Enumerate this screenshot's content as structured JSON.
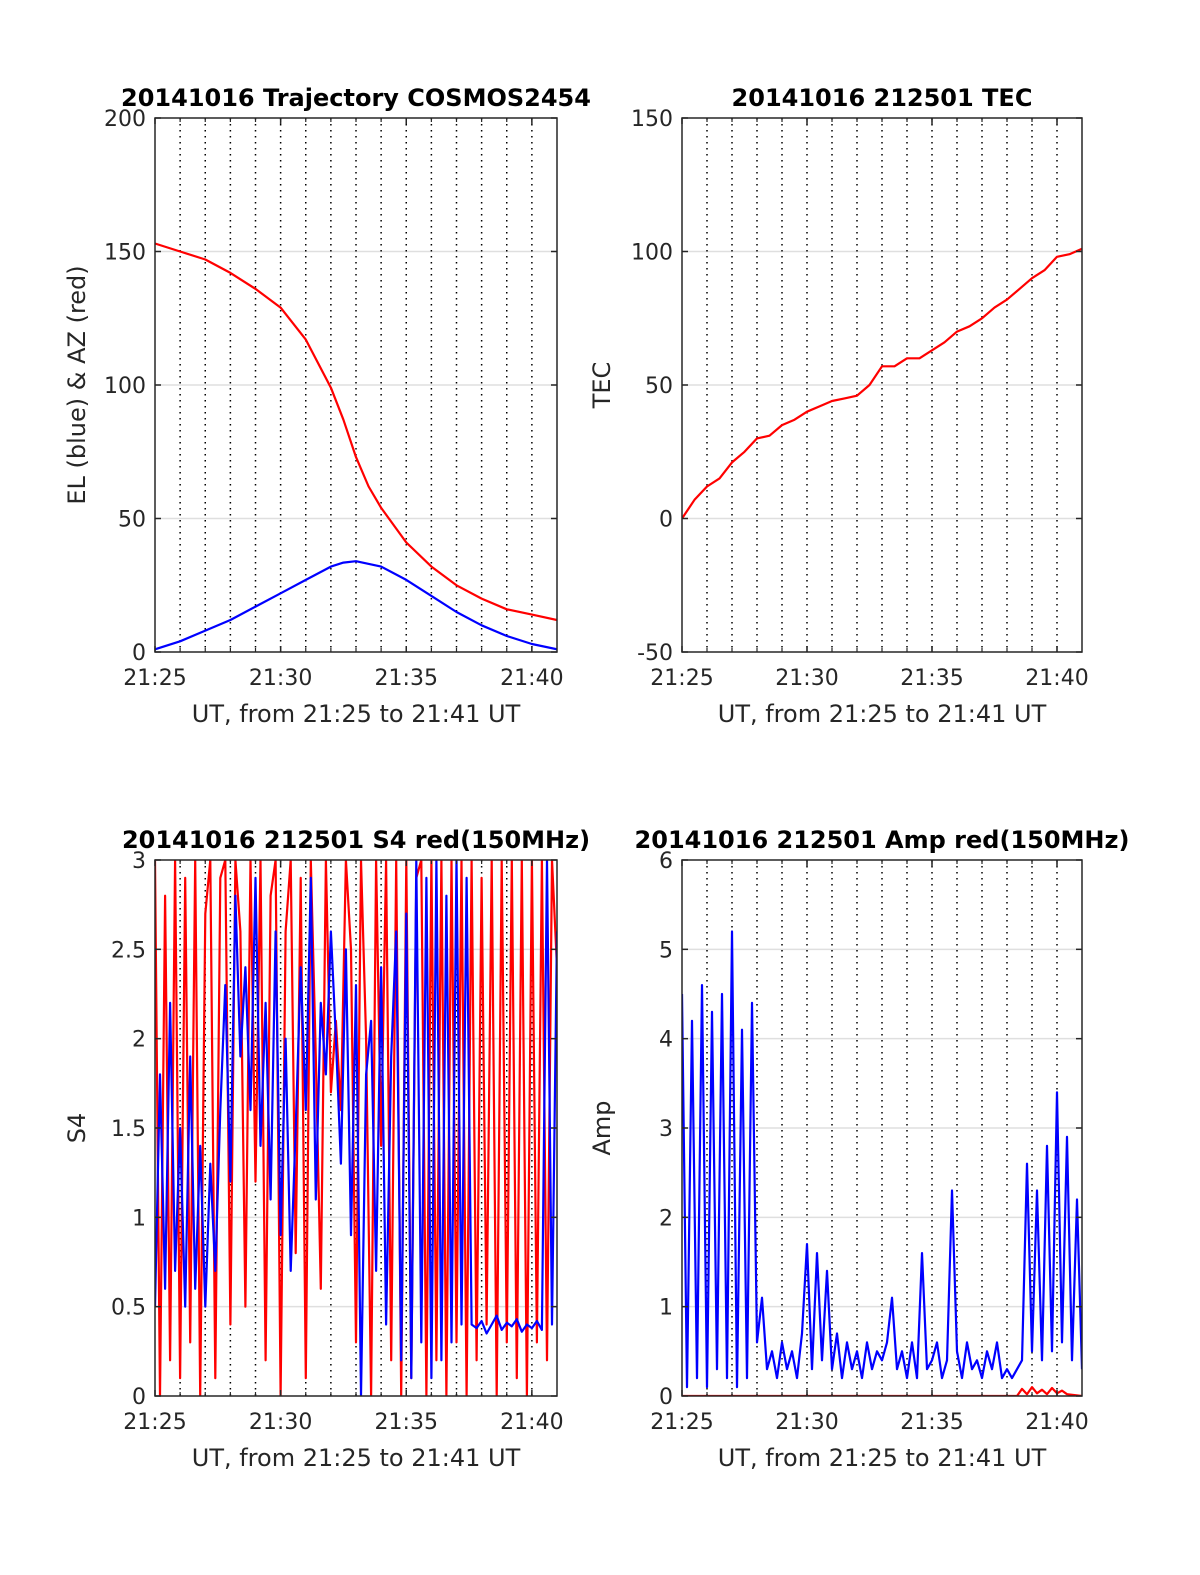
{
  "chart_data": [
    {
      "id": "trajectory",
      "type": "line",
      "title": "20141016 Trajectory COSMOS2454",
      "xlabel": "UT, from 21:25 to 21:41 UT",
      "ylabel": "EL (blue) & AZ (red)",
      "xlim": [
        0,
        16
      ],
      "ylim": [
        0,
        200
      ],
      "xticks": [
        0,
        5,
        10,
        15
      ],
      "xticklabels": [
        "21:25",
        "21:30",
        "21:35",
        "21:40"
      ],
      "yticks": [
        0,
        50,
        100,
        150,
        200
      ],
      "yticklabels": [
        "0",
        "50",
        "100",
        "150",
        "200"
      ],
      "grid": true,
      "minute_gridlines": [
        1,
        2,
        3,
        4,
        5,
        6,
        7,
        8,
        9,
        10,
        11,
        12,
        13,
        14,
        15
      ],
      "series": [
        {
          "color": "#ff0000",
          "x": [
            0,
            1,
            2,
            3,
            4,
            5,
            6,
            7,
            7.5,
            8,
            8.5,
            9,
            10,
            11,
            12,
            13,
            14,
            15,
            16
          ],
          "values": [
            153,
            150,
            147,
            142,
            136,
            129,
            117,
            99,
            87,
            73,
            62,
            54,
            41,
            32,
            25,
            20,
            16,
            14,
            12
          ]
        },
        {
          "color": "#0000ff",
          "x": [
            0,
            1,
            2,
            3,
            4,
            5,
            6,
            7,
            7.5,
            8,
            9,
            10,
            11,
            12,
            13,
            14,
            15,
            16
          ],
          "values": [
            1,
            4,
            8,
            12,
            17,
            22,
            27,
            32,
            33.5,
            34,
            32,
            27,
            21,
            15,
            10,
            6,
            3,
            1
          ]
        }
      ]
    },
    {
      "id": "tec",
      "type": "line",
      "title": "20141016 212501 TEC",
      "xlabel": "UT, from 21:25 to 21:41 UT",
      "ylabel": "TEC",
      "xlim": [
        0,
        16
      ],
      "ylim": [
        -50,
        150
      ],
      "xticks": [
        0,
        5,
        10,
        15
      ],
      "xticklabels": [
        "21:25",
        "21:30",
        "21:35",
        "21:40"
      ],
      "yticks": [
        -50,
        0,
        50,
        100,
        150
      ],
      "yticklabels": [
        "-50",
        "0",
        "50",
        "100",
        "150"
      ],
      "grid": true,
      "minute_gridlines": [
        1,
        2,
        3,
        4,
        5,
        6,
        7,
        8,
        9,
        10,
        11,
        12,
        13,
        14,
        15
      ],
      "series": [
        {
          "color": "#ff0000",
          "x": [
            0,
            0.5,
            1,
            1.5,
            2,
            2.5,
            3,
            3.5,
            4,
            4.5,
            5,
            5.5,
            6,
            6.5,
            7,
            7.5,
            8,
            8.5,
            9,
            9.5,
            10,
            10.5,
            11,
            11.5,
            12,
            12.5,
            13,
            13.5,
            14,
            14.5,
            15,
            15.5,
            16
          ],
          "values": [
            0,
            7,
            12,
            15,
            21,
            25,
            30,
            31,
            35,
            37,
            40,
            42,
            44,
            45,
            46,
            50,
            57,
            57,
            60,
            60,
            63,
            66,
            70,
            72,
            75,
            79,
            82,
            86,
            90,
            93,
            98,
            99,
            101
          ]
        }
      ]
    },
    {
      "id": "s4",
      "type": "line",
      "title": "20141016 212501 S4 red(150MHz)",
      "xlabel": "UT, from 21:25 to 21:41 UT",
      "ylabel": "S4",
      "xlim": [
        0,
        16
      ],
      "ylim": [
        0,
        3
      ],
      "xticks": [
        0,
        5,
        10,
        15
      ],
      "xticklabels": [
        "21:25",
        "21:30",
        "21:35",
        "21:40"
      ],
      "yticks": [
        0,
        0.5,
        1,
        1.5,
        2,
        2.5,
        3
      ],
      "yticklabels": [
        "0",
        "0.5",
        "1",
        "1.5",
        "2",
        "2.5",
        "3"
      ],
      "grid": true,
      "minute_gridlines": [
        1,
        2,
        3,
        4,
        5,
        6,
        7,
        8,
        9,
        10,
        11,
        12,
        13,
        14,
        15
      ],
      "series": [
        {
          "color": "#ff0000",
          "x": [
            0,
            0.2,
            0.4,
            0.6,
            0.8,
            1,
            1.2,
            1.4,
            1.6,
            1.8,
            2,
            2.2,
            2.4,
            2.6,
            2.8,
            3,
            3.2,
            3.4,
            3.6,
            3.8,
            4,
            4.2,
            4.4,
            4.6,
            4.8,
            5,
            5.2,
            5.4,
            5.6,
            5.8,
            6,
            6.2,
            6.4,
            6.6,
            6.8,
            7,
            7.2,
            7.4,
            7.6,
            7.8,
            8,
            8.2,
            8.4,
            8.6,
            8.8,
            9,
            9.2,
            9.4,
            9.6,
            9.8,
            10,
            10.2,
            10.4,
            10.6,
            10.8,
            11,
            11.2,
            11.4,
            11.6,
            11.8,
            12,
            12.2,
            12.4,
            12.6,
            12.8,
            13,
            13.2,
            13.4,
            13.6,
            13.8,
            14,
            14.2,
            14.4,
            14.6,
            14.8,
            15,
            15.2,
            15.4,
            15.6,
            15.8,
            16
          ],
          "values": [
            3,
            0,
            2.8,
            0.2,
            3,
            0.1,
            2.9,
            0.3,
            3,
            0,
            2.7,
            3,
            0.1,
            2.9,
            3,
            0.4,
            3,
            2.6,
            0.5,
            3,
            1.2,
            3,
            0.2,
            2.8,
            3,
            0,
            2.6,
            3,
            0.8,
            2.9,
            0.1,
            3,
            1.9,
            0.6,
            3,
            1.7,
            2.1,
            1.6,
            3,
            2.5,
            0.3,
            3,
            2.0,
            0,
            3,
            1.4,
            3,
            0.2,
            3,
            0,
            3,
            0.1,
            2.9,
            3,
            0,
            3,
            0.2,
            3,
            0,
            3,
            0.3,
            3,
            0,
            3,
            0.2,
            2.9,
            0.4,
            3,
            0,
            3,
            0.3,
            3,
            0.1,
            3,
            0,
            3,
            0.3,
            3,
            0.2,
            3,
            2.4
          ]
        },
        {
          "color": "#0000ff",
          "x": [
            0,
            0.2,
            0.4,
            0.6,
            0.8,
            1,
            1.2,
            1.4,
            1.6,
            1.8,
            2,
            2.2,
            2.4,
            2.6,
            2.8,
            3,
            3.2,
            3.4,
            3.6,
            3.8,
            4,
            4.2,
            4.4,
            4.6,
            4.8,
            5,
            5.2,
            5.4,
            5.6,
            5.8,
            6,
            6.2,
            6.4,
            6.6,
            6.8,
            7,
            7.2,
            7.4,
            7.6,
            7.8,
            8,
            8.2,
            8.4,
            8.6,
            8.8,
            9,
            9.2,
            9.4,
            9.6,
            9.8,
            10,
            10.2,
            10.4,
            10.6,
            10.8,
            11,
            11.2,
            11.4,
            11.6,
            11.8,
            12,
            12.2,
            12.4,
            12.6,
            12.8,
            13,
            13.2,
            13.4,
            13.6,
            13.8,
            14,
            14.2,
            14.4,
            14.6,
            14.8,
            15,
            15.2,
            15.4,
            15.6,
            15.8,
            16
          ],
          "values": [
            0.5,
            1.8,
            0.6,
            2.2,
            0.7,
            1.5,
            0.5,
            1.9,
            0.6,
            1.4,
            0.5,
            1.3,
            0.7,
            1.6,
            2.3,
            1.2,
            2.8,
            1.9,
            2.4,
            1.6,
            2.9,
            1.4,
            2.2,
            1.1,
            2.6,
            0.9,
            2.0,
            0.7,
            1.5,
            2.4,
            1.6,
            2.9,
            1.1,
            2.2,
            1.8,
            2.6,
            2.0,
            1.3,
            2.5,
            0.9,
            2.3,
            0,
            1.8,
            2.1,
            0.7,
            2.4,
            0.4,
            1.9,
            2.6,
            0.2,
            2.7,
            0.1,
            3,
            0.3,
            2.9,
            0.1,
            3,
            0.2,
            2.8,
            0.3,
            3,
            0.4,
            2.9,
            0.4,
            0.38,
            0.42,
            0.35,
            0.4,
            0.45,
            0.37,
            0.41,
            0.39,
            0.43,
            0.36,
            0.4,
            0.38,
            0.42,
            0.37,
            3,
            0.4,
            2.6
          ]
        }
      ]
    },
    {
      "id": "amp",
      "type": "line",
      "title": "20141016 212501 Amp red(150MHz)",
      "xlabel": "UT, from 21:25 to 21:41 UT",
      "ylabel": "Amp",
      "xlim": [
        0,
        16
      ],
      "ylim": [
        0,
        6
      ],
      "xticks": [
        0,
        5,
        10,
        15
      ],
      "xticklabels": [
        "21:25",
        "21:30",
        "21:35",
        "21:40"
      ],
      "yticks": [
        0,
        1,
        2,
        3,
        4,
        5,
        6
      ],
      "yticklabels": [
        "0",
        "1",
        "2",
        "3",
        "4",
        "5",
        "6"
      ],
      "grid": true,
      "minute_gridlines": [
        1,
        2,
        3,
        4,
        5,
        6,
        7,
        8,
        9,
        10,
        11,
        12,
        13,
        14,
        15
      ],
      "series": [
        {
          "color": "#0000ff",
          "x": [
            0,
            0.2,
            0.4,
            0.6,
            0.8,
            1,
            1.2,
            1.4,
            1.6,
            1.8,
            2,
            2.2,
            2.4,
            2.6,
            2.8,
            3,
            3.2,
            3.4,
            3.6,
            3.8,
            4,
            4.2,
            4.4,
            4.6,
            4.8,
            5,
            5.2,
            5.4,
            5.6,
            5.8,
            6,
            6.2,
            6.4,
            6.6,
            6.8,
            7,
            7.2,
            7.4,
            7.6,
            7.8,
            8,
            8.2,
            8.4,
            8.6,
            8.8,
            9,
            9.2,
            9.4,
            9.6,
            9.8,
            10,
            10.2,
            10.4,
            10.6,
            10.8,
            11,
            11.2,
            11.4,
            11.6,
            11.8,
            12,
            12.2,
            12.4,
            12.6,
            12.8,
            13,
            13.2,
            13.4,
            13.6,
            13.8,
            14,
            14.2,
            14.4,
            14.6,
            14.8,
            15,
            15.2,
            15.4,
            15.6,
            15.8,
            16
          ],
          "values": [
            4.5,
            0.1,
            4.2,
            0.2,
            4.6,
            0.1,
            4.3,
            0.3,
            4.5,
            0.2,
            5.2,
            0.1,
            4.1,
            0.2,
            4.4,
            0.6,
            1.1,
            0.3,
            0.5,
            0.2,
            0.6,
            0.3,
            0.5,
            0.2,
            0.7,
            1.7,
            0.3,
            1.6,
            0.4,
            1.4,
            0.3,
            0.7,
            0.2,
            0.6,
            0.3,
            0.5,
            0.2,
            0.6,
            0.3,
            0.5,
            0.4,
            0.6,
            1.1,
            0.3,
            0.5,
            0.2,
            0.6,
            0.2,
            1.6,
            0.3,
            0.4,
            0.6,
            0.2,
            0.4,
            2.3,
            0.5,
            0.2,
            0.6,
            0.3,
            0.4,
            0.2,
            0.5,
            0.3,
            0.6,
            0.2,
            0.3,
            0.2,
            0.3,
            0.4,
            2.6,
            0.5,
            2.3,
            0.4,
            2.8,
            0.5,
            3.4,
            0.6,
            2.9,
            0.4,
            2.2,
            0.3
          ]
        },
        {
          "color": "#ff0000",
          "x": [
            0,
            13.4,
            13.6,
            13.8,
            14.0,
            14.2,
            14.4,
            14.6,
            14.8,
            15.0,
            15.2,
            15.4,
            16
          ],
          "values": [
            0,
            0,
            0.08,
            0.02,
            0.1,
            0.03,
            0.07,
            0.02,
            0.09,
            0.03,
            0.06,
            0.02,
            0
          ]
        }
      ]
    }
  ]
}
